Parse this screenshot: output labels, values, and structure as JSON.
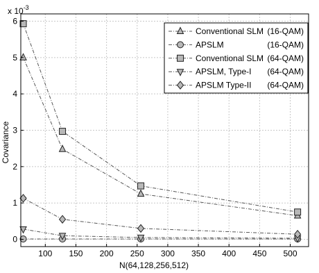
{
  "chart_data": {
    "type": "line",
    "title": "",
    "xlabel": "N(64,128,256,512)",
    "ylabel": "Covariance",
    "y_multiplier_label": "x 10",
    "y_multiplier_exponent": "-3",
    "xlim": [
      60,
      530
    ],
    "ylim": [
      -0.2,
      6.2
    ],
    "xticks": [
      100,
      150,
      200,
      250,
      300,
      350,
      400,
      450,
      500
    ],
    "yticks": [
      0,
      1,
      2,
      3,
      4,
      5,
      6
    ],
    "grid": true,
    "legend_position": "top-right",
    "x": [
      64,
      128,
      256,
      512
    ],
    "series": [
      {
        "name": "Conventional SLM (16-QAM)",
        "values": [
          5.0,
          2.48,
          1.25,
          0.65
        ],
        "marker": "triangle-up",
        "dash": "dashdot"
      },
      {
        "name": "APSLM (16-QAM)",
        "values": [
          0.01,
          0.01,
          0.01,
          0.01
        ],
        "marker": "circle",
        "dash": "dashdot"
      },
      {
        "name": "Conventional SLM (64-QAM)",
        "values": [
          5.93,
          2.97,
          1.47,
          0.75
        ],
        "marker": "square",
        "dash": "dashdot"
      },
      {
        "name": "APSLM, Type-I (64-QAM)",
        "values": [
          0.28,
          0.1,
          0.05,
          0.03
        ],
        "marker": "triangle-down",
        "dash": "dashdot"
      },
      {
        "name": "APSLM Type-II (64-QAM)",
        "values": [
          1.13,
          0.55,
          0.3,
          0.14
        ],
        "marker": "diamond",
        "dash": "dashdot"
      }
    ]
  },
  "legend": {
    "entries": [
      {
        "label": "Conventional SLM",
        "qualifier": "(16-QAM)"
      },
      {
        "label": "APSLM",
        "qualifier": "(16-QAM)"
      },
      {
        "label": "Conventional SLM",
        "qualifier": "(64-QAM)"
      },
      {
        "label": "APSLM, Type-I",
        "qualifier": "(64-QAM)"
      },
      {
        "label": "APSLM Type-II",
        "qualifier": "(64-QAM)"
      }
    ]
  },
  "colors": {
    "line": "#555555",
    "marker_fill": "#b8b8b8",
    "grid": "#c8c8c8"
  }
}
